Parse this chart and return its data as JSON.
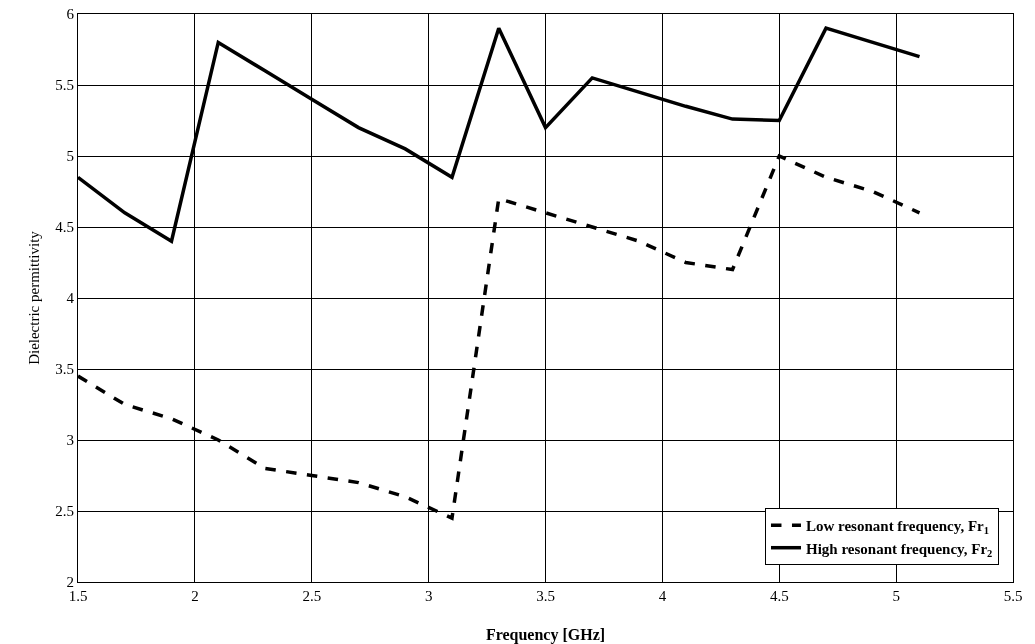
{
  "chart_data": {
    "type": "line",
    "xlabel": "Frequency [GHz]",
    "ylabel": "Dielectric permittivity",
    "x": [
      1.5,
      1.7,
      1.9,
      2.1,
      2.3,
      2.5,
      2.7,
      2.9,
      3.1,
      3.3,
      3.5,
      3.7,
      3.9,
      4.1,
      4.3,
      4.5,
      4.7,
      4.9,
      5.1
    ],
    "series": [
      {
        "name": "Low resonant frequency, Fr$_{1}$",
        "color": "#000000",
        "line_style": "dashed",
        "values": [
          3.45,
          3.25,
          3.15,
          3.0,
          2.8,
          2.75,
          2.7,
          2.6,
          2.45,
          4.7,
          4.6,
          4.5,
          4.4,
          4.25,
          4.2,
          5.0,
          4.85,
          4.75,
          4.6
        ]
      },
      {
        "name": "High resonant frequency, Fr$_{2}$",
        "color": "#000000",
        "line_style": "solid",
        "values": [
          4.85,
          4.6,
          4.4,
          5.8,
          5.6,
          5.4,
          5.2,
          5.05,
          4.85,
          5.9,
          5.2,
          5.55,
          5.45,
          5.35,
          5.26,
          5.25,
          5.9,
          5.8,
          5.7
        ]
      }
    ],
    "xlim": [
      1.5,
      5.5
    ],
    "xticks": [
      1.5,
      2,
      2.5,
      3,
      3.5,
      4,
      4.5,
      5,
      5.5
    ],
    "ylim": [
      2,
      6
    ],
    "yticks": [
      2,
      2.5,
      3,
      3.5,
      4,
      4.5,
      5,
      5.5,
      6
    ],
    "grid": true,
    "legend": "bottom right",
    "marker": "none"
  }
}
